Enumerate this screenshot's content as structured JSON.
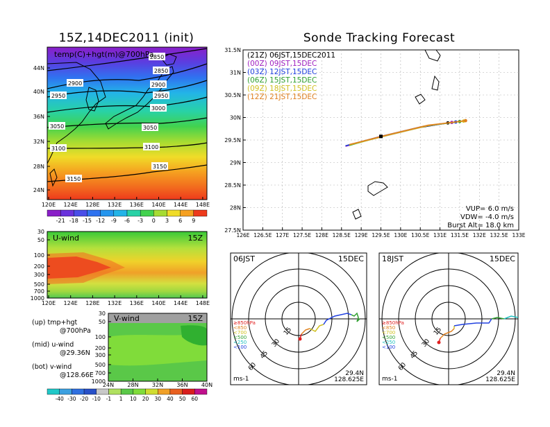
{
  "left_title": "15Z,14DEC2011 (init)",
  "right_title": "Sonde Tracking Forecast",
  "map_panel": {
    "label": "temp(C)+hgt(m)@700hPa",
    "lon_ticks": [
      "120E",
      "124E",
      "128E",
      "132E",
      "136E",
      "140E",
      "144E",
      "148E"
    ],
    "lat_ticks": [
      "44N",
      "40N",
      "36N",
      "32N",
      "28N",
      "24N"
    ],
    "contour_labels": [
      "2850",
      "2850",
      "2900",
      "2900",
      "2950",
      "2950",
      "3000",
      "3050",
      "3050",
      "3100",
      "3100",
      "3150",
      "3150"
    ]
  },
  "temp_colorbar": {
    "ticks": [
      "-21",
      "-18",
      "-15",
      "-12",
      "-9",
      "-6",
      "-3",
      "0",
      "3",
      "6",
      "9"
    ]
  },
  "uwind_panel": {
    "label": "U-wind",
    "time": "15Z",
    "p_ticks": [
      "30",
      "50",
      "100",
      "200",
      "300",
      "500",
      "700",
      "1000"
    ],
    "lon_ticks": [
      "120E",
      "124E",
      "128E",
      "132E",
      "136E",
      "140E",
      "144E",
      "148E"
    ]
  },
  "vwind_panel": {
    "label": "V-wind",
    "time": "15Z",
    "p_ticks": [
      "30",
      "50",
      "100",
      "200",
      "300",
      "500",
      "700",
      "1000"
    ],
    "lat_ticks": [
      "24N",
      "28N",
      "32N",
      "36N",
      "40N"
    ]
  },
  "wind_colorbar": {
    "ticks": [
      "-40",
      "-30",
      "-20",
      "-10",
      "-1",
      "1",
      "10",
      "20",
      "30",
      "40",
      "50",
      "60"
    ]
  },
  "notes": [
    {
      "line1": "(up) tmp+hgt",
      "line2": "@700hPa"
    },
    {
      "line1": "(mid) u-wind",
      "line2": "@29.36N"
    },
    {
      "line1": "(bot) v-wind",
      "line2": "@128.66E"
    }
  ],
  "track_panel": {
    "lat_ticks": [
      "31.5N",
      "31N",
      "30.5N",
      "30N",
      "29.5N",
      "29N",
      "28.5N",
      "28N",
      "27.5N"
    ],
    "lon_ticks": [
      "126E",
      "126.5E",
      "127E",
      "127.5E",
      "128E",
      "128.5E",
      "129E",
      "129.5E",
      "130E",
      "130.5E",
      "131E",
      "131.5E",
      "132E",
      "132.5E",
      "133E"
    ],
    "legend": [
      {
        "text": "(21Z) 06JST,15DEC2011",
        "color": "#000000"
      },
      {
        "text": "(00Z) 09JST,15DEC",
        "color": "#a020c0"
      },
      {
        "text": "(03Z) 12JST,15DEC",
        "color": "#2040e0"
      },
      {
        "text": "(06Z) 15JST,15DEC",
        "color": "#30a030"
      },
      {
        "text": "(09Z) 18JST,15DEC",
        "color": "#d0c020"
      },
      {
        "text": "(12Z) 21JST,15DEC",
        "color": "#e08020"
      }
    ],
    "info": [
      "VUP= 6.0 m/s",
      "VDW= -4.0 m/s",
      "Burst Alt= 18.0 km"
    ]
  },
  "hodo_left": {
    "time": "06JST",
    "date": "15DEC",
    "ring_labels": [
      "15",
      "30",
      "45",
      "60"
    ],
    "levels": [
      {
        "text": "≥850hPa",
        "color": "#e02020"
      },
      {
        "text": "<850",
        "color": "#e08020"
      },
      {
        "text": "<700",
        "color": "#d0c020"
      },
      {
        "text": "<500",
        "color": "#30a030"
      },
      {
        "text": "<250",
        "color": "#20c0c0"
      },
      {
        "text": "<100",
        "color": "#2040e0"
      }
    ],
    "unit": "ms-1",
    "lat": "29.4N",
    "lon": "128.625E"
  },
  "hodo_right": {
    "time": "18JST",
    "date": "15DEC",
    "ring_labels": [
      "15",
      "30",
      "45",
      "60"
    ],
    "levels": [
      {
        "text": "≥850hPa",
        "color": "#e02020"
      },
      {
        "text": "<850",
        "color": "#e08020"
      },
      {
        "text": "<700",
        "color": "#d0c020"
      },
      {
        "text": "<500",
        "color": "#30a030"
      },
      {
        "text": "<250",
        "color": "#20c0c0"
      },
      {
        "text": "<100",
        "color": "#2040e0"
      }
    ],
    "unit": "ms-1",
    "lat": "29.4N",
    "lon": "128.625E"
  },
  "chart_data": [
    {
      "type": "heatmap",
      "title": "15Z,14DEC2011 (init)",
      "label": "temp(C)+hgt(m)@700hPa",
      "x_range": [
        120,
        149
      ],
      "y_range": [
        22,
        48
      ],
      "temp_levels": [
        -21,
        -18,
        -15,
        -12,
        -9,
        -6,
        -3,
        0,
        3,
        6,
        9
      ],
      "height_contours": [
        2850,
        2900,
        2950,
        3000,
        3050,
        3100,
        3150
      ]
    },
    {
      "type": "line",
      "title": "Sonde Tracking Forecast",
      "xlim": [
        126,
        133
      ],
      "ylim": [
        27.5,
        31.5
      ],
      "grid": true,
      "series": [
        {
          "name": "(21Z) 06JST,15DEC2011",
          "x": [
            128.6,
            129.5,
            130.5,
            131.2
          ],
          "y": [
            29.37,
            29.58,
            29.78,
            29.88
          ]
        },
        {
          "name": "(00Z) 09JST,15DEC",
          "x": [
            128.6,
            129.5,
            130.5,
            131.3
          ],
          "y": [
            29.36,
            29.58,
            29.79,
            29.89
          ]
        },
        {
          "name": "(03Z) 12JST,15DEC",
          "x": [
            128.6,
            129.6,
            130.6,
            131.4
          ],
          "y": [
            29.37,
            29.59,
            29.8,
            29.9
          ]
        },
        {
          "name": "(06Z) 15JST,15DEC",
          "x": [
            128.7,
            129.6,
            130.6,
            131.5
          ],
          "y": [
            29.38,
            29.6,
            29.81,
            29.91
          ]
        },
        {
          "name": "(09Z) 18JST,15DEC",
          "x": [
            128.7,
            129.7,
            130.7,
            131.6
          ],
          "y": [
            29.39,
            29.61,
            29.82,
            29.92
          ]
        },
        {
          "name": "(12Z) 21JST,15DEC",
          "x": [
            128.7,
            129.7,
            130.7,
            131.65
          ],
          "y": [
            29.4,
            29.62,
            29.83,
            29.93
          ]
        }
      ]
    }
  ]
}
